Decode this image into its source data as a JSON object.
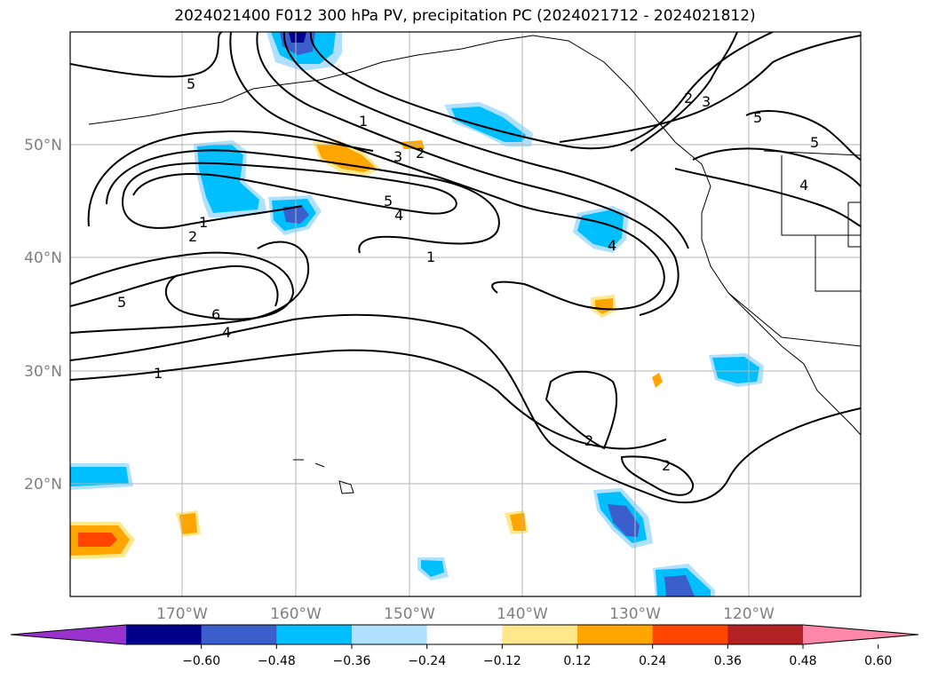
{
  "title": "2024021400 F012 300 hPa PV, precipitation PC (2024021712 - 2024021812)",
  "map": {
    "lat_labels": [
      "50°N",
      "40°N",
      "30°N",
      "20°N"
    ],
    "lon_labels": [
      "170°W",
      "160°W",
      "150°W",
      "140°W",
      "130°W",
      "120°W"
    ],
    "contour_labels": [
      {
        "text": "5",
        "near": "top-left 5"
      },
      {
        "text": "1",
        "near": "central 1"
      },
      {
        "text": "3",
        "near": "central 3"
      },
      {
        "text": "2",
        "near": "central 2"
      },
      {
        "text": "5",
        "near": "central 5"
      },
      {
        "text": "4",
        "near": "central 4"
      },
      {
        "text": "1",
        "near": "left 1"
      },
      {
        "text": "2",
        "near": "left 2"
      },
      {
        "text": "1",
        "near": "mid 1"
      },
      {
        "text": "5",
        "near": "left 5"
      },
      {
        "text": "6",
        "near": "low 6"
      },
      {
        "text": "4",
        "near": "low 4"
      },
      {
        "text": "1",
        "near": "south 1"
      },
      {
        "text": "4",
        "near": "east 4"
      },
      {
        "text": "2",
        "near": "ne 2"
      },
      {
        "text": "3",
        "near": "ne 3"
      },
      {
        "text": "5",
        "near": "ne 5"
      },
      {
        "text": "5",
        "near": "coast 5"
      },
      {
        "text": "4",
        "near": "coast 4"
      },
      {
        "text": "2",
        "near": "subtropic 2"
      },
      {
        "text": "2",
        "near": "subtropic 2b"
      }
    ]
  },
  "colorbar": {
    "ticks": [
      "−0.60",
      "−0.48",
      "−0.36",
      "−0.24",
      "−0.12",
      "0.12",
      "0.24",
      "0.36",
      "0.48",
      "0.60"
    ],
    "colors": [
      "#9932cc",
      "#00008b",
      "#3a5fcd",
      "#00bfff",
      "#b0e0ff",
      "#ffffff",
      "#ffe88c",
      "#ffa500",
      "#ff4500",
      "#b22222",
      "#ff88aa"
    ]
  }
}
